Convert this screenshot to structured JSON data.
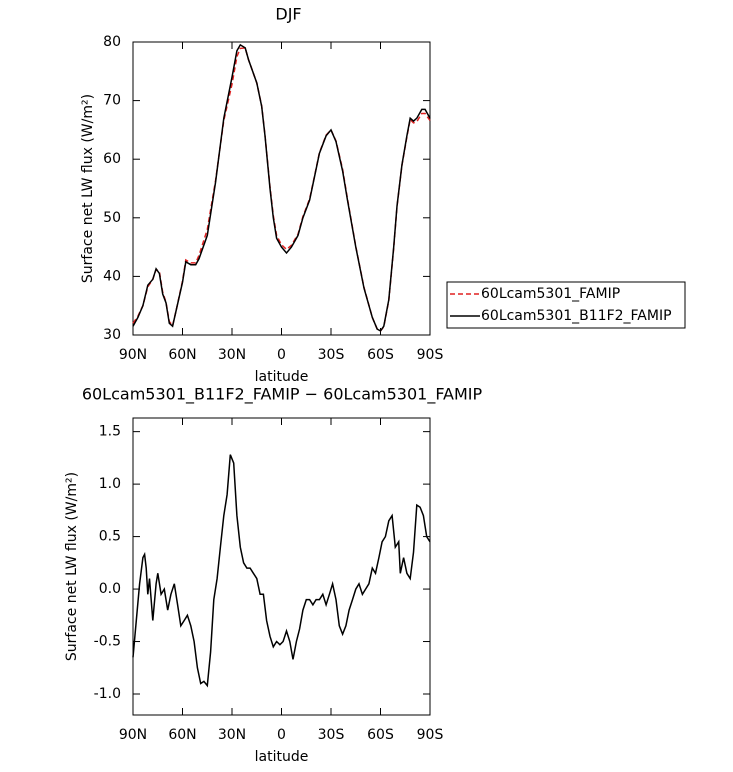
{
  "chart_data": [
    {
      "type": "line",
      "title": "DJF",
      "xlabel": "latitude",
      "ylabel": "Surface net LW flux (W/m²)",
      "x": [
        90,
        87,
        84,
        81,
        78,
        76,
        74,
        72,
        70,
        68,
        66,
        64,
        62,
        60,
        58,
        55,
        52,
        50,
        45,
        40,
        35,
        30,
        27,
        25,
        22,
        20,
        15,
        12,
        10,
        7,
        5,
        3,
        0,
        -3,
        -6,
        -10,
        -13,
        -17,
        -20,
        -23,
        -27,
        -30,
        -33,
        -37,
        -40,
        -45,
        -50,
        -55,
        -58,
        -60,
        -62,
        -65,
        -68,
        -70,
        -73,
        -76,
        -78,
        -80,
        -82,
        -85,
        -87,
        -90
      ],
      "series": [
        {
          "name": "60Lcam5301_FAMIP",
          "color": "#e02020",
          "line_style": "dashed",
          "values": [
            32,
            33.2,
            35,
            38.2,
            39.5,
            41.2,
            40.8,
            37.3,
            35.6,
            32.3,
            31.6,
            34,
            36.6,
            39.2,
            42.8,
            42.3,
            42.3,
            43.6,
            48,
            56.3,
            66.6,
            72.8,
            77.5,
            78.9,
            79,
            77,
            73,
            69.1,
            64.1,
            55.3,
            50.4,
            47,
            45.4,
            44.6,
            45.3,
            47.2,
            50.2,
            53.2,
            57.1,
            61.1,
            64.1,
            65,
            63.1,
            58.3,
            53.2,
            45.1,
            38.1,
            33,
            31,
            30.7,
            31.4,
            35.9,
            44.8,
            51.9,
            58.9,
            63.8,
            66.8,
            66.2,
            66.4,
            67.8,
            67.8,
            66.6
          ]
        },
        {
          "name": "60Lcam5301_B11F2_FAMIP",
          "color": "#000000",
          "line_style": "solid",
          "values": [
            31.5,
            33,
            35,
            38.5,
            39.5,
            41.3,
            40.5,
            37,
            35.5,
            32,
            31.5,
            34,
            36.5,
            39,
            42.5,
            42,
            42,
            43,
            47,
            56,
            67,
            74,
            78.5,
            79.5,
            79,
            77,
            73,
            69,
            64,
            55,
            50,
            46.5,
            45,
            44,
            45,
            47,
            50,
            53,
            57,
            61,
            64,
            65,
            63,
            58,
            53,
            45,
            38,
            33,
            31,
            30.7,
            31.5,
            36,
            45,
            52,
            59,
            64,
            67,
            66.5,
            67,
            68.5,
            68.5,
            67
          ]
        }
      ],
      "ylim": [
        30,
        80
      ],
      "yticks": [
        30,
        40,
        50,
        60,
        70,
        80
      ],
      "xlim": [
        90,
        -90
      ],
      "xticks": [
        {
          "value": 90,
          "label": "90N"
        },
        {
          "value": 60,
          "label": "60N"
        },
        {
          "value": 30,
          "label": "30N"
        },
        0,
        {
          "value": -30,
          "label": "30S"
        },
        {
          "value": -60,
          "label": "60S"
        },
        {
          "value": -90,
          "label": "90S"
        }
      ],
      "legend": "right"
    },
    {
      "type": "line",
      "title": "60Lcam5301_B11F2_FAMIP − 60Lcam5301_FAMIP",
      "xlabel": "latitude",
      "ylabel": "Surface net LW flux (W/m²)",
      "x": [
        90,
        88,
        86,
        84,
        83,
        82,
        81,
        80,
        78,
        76,
        75,
        73,
        71,
        69,
        67,
        65,
        63,
        61,
        59,
        57,
        55,
        53,
        51,
        49,
        47,
        45,
        43,
        41,
        39,
        37,
        35,
        33,
        31,
        29,
        27,
        25,
        23,
        21,
        19,
        17,
        15,
        13,
        11,
        9,
        7,
        5,
        3,
        1,
        -1,
        -3,
        -5,
        -7,
        -9,
        -11,
        -13,
        -15,
        -17,
        -19,
        -21,
        -23,
        -25,
        -27,
        -29,
        -31,
        -33,
        -35,
        -37,
        -39,
        -41,
        -43,
        -45,
        -47,
        -49,
        -51,
        -53,
        -55,
        -57,
        -59,
        -61,
        -63,
        -65,
        -67,
        -69,
        -71,
        -72,
        -74,
        -76,
        -78,
        -80,
        -82,
        -84,
        -86,
        -88,
        -90
      ],
      "values": [
        -0.65,
        -0.3,
        0.05,
        0.3,
        0.33,
        0.2,
        -0.05,
        0.1,
        -0.3,
        0.05,
        0.15,
        -0.05,
        0.0,
        -0.2,
        -0.05,
        0.05,
        -0.15,
        -0.35,
        -0.3,
        -0.25,
        -0.35,
        -0.5,
        -0.75,
        -0.9,
        -0.88,
        -0.92,
        -0.6,
        -0.1,
        0.1,
        0.4,
        0.7,
        0.9,
        1.28,
        1.2,
        0.7,
        0.4,
        0.25,
        0.2,
        0.2,
        0.15,
        0.1,
        -0.05,
        -0.05,
        -0.3,
        -0.45,
        -0.55,
        -0.5,
        -0.53,
        -0.5,
        -0.4,
        -0.5,
        -0.67,
        -0.5,
        -0.38,
        -0.2,
        -0.1,
        -0.1,
        -0.15,
        -0.1,
        -0.1,
        -0.05,
        -0.15,
        -0.05,
        0.05,
        -0.1,
        -0.35,
        -0.43,
        -0.35,
        -0.2,
        -0.1,
        0.0,
        0.05,
        -0.05,
        0.0,
        0.05,
        0.2,
        0.15,
        0.3,
        0.45,
        0.5,
        0.65,
        0.7,
        0.4,
        0.45,
        0.15,
        0.3,
        0.15,
        0.1,
        0.35,
        0.8,
        0.78,
        0.7,
        0.5,
        0.45
      ],
      "color": "#000000",
      "ylim": [
        -1.2,
        1.63
      ],
      "yticks": [
        {
          "value": -1,
          "label": "-1.0"
        },
        -0.5,
        {
          "value": 0,
          "label": "0.0"
        },
        0.5,
        {
          "value": 1,
          "label": "1.0"
        },
        1.5
      ],
      "xlim": [
        90,
        -90
      ],
      "xticks": [
        {
          "value": 90,
          "label": "90N"
        },
        {
          "value": 60,
          "label": "60N"
        },
        {
          "value": 30,
          "label": "30N"
        },
        0,
        {
          "value": -30,
          "label": "30S"
        },
        {
          "value": -60,
          "label": "60S"
        },
        {
          "value": -90,
          "label": "90S"
        }
      ]
    }
  ]
}
